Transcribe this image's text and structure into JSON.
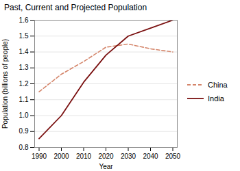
{
  "chart_data": {
    "type": "line",
    "title": "Past, Current and Projected Population",
    "xlabel": "Year",
    "ylabel": "Population (billions of people)",
    "x": [
      1990,
      2000,
      2010,
      2020,
      2030,
      2040,
      2050
    ],
    "series": [
      {
        "name": "China",
        "color": "#d4856a",
        "line_style": "dashed",
        "values": [
          1.15,
          1.26,
          1.34,
          1.43,
          1.45,
          1.42,
          1.4
        ]
      },
      {
        "name": "India",
        "color": "#7a1010",
        "line_style": "solid",
        "values": [
          0.855,
          1.0,
          1.21,
          1.38,
          1.5,
          1.55,
          1.6
        ]
      }
    ],
    "xlim": [
      1988,
      2052
    ],
    "ylim": [
      0.8,
      1.6
    ],
    "xticks": [
      1990,
      2000,
      2010,
      2020,
      2030,
      2040,
      2050
    ],
    "yticks": [
      0.8,
      0.9,
      {
        "value": 1.0,
        "label": "1.0"
      },
      1.1,
      1.2,
      1.3,
      1.4,
      1.5,
      1.6
    ],
    "grid": "y",
    "legend": "right"
  }
}
